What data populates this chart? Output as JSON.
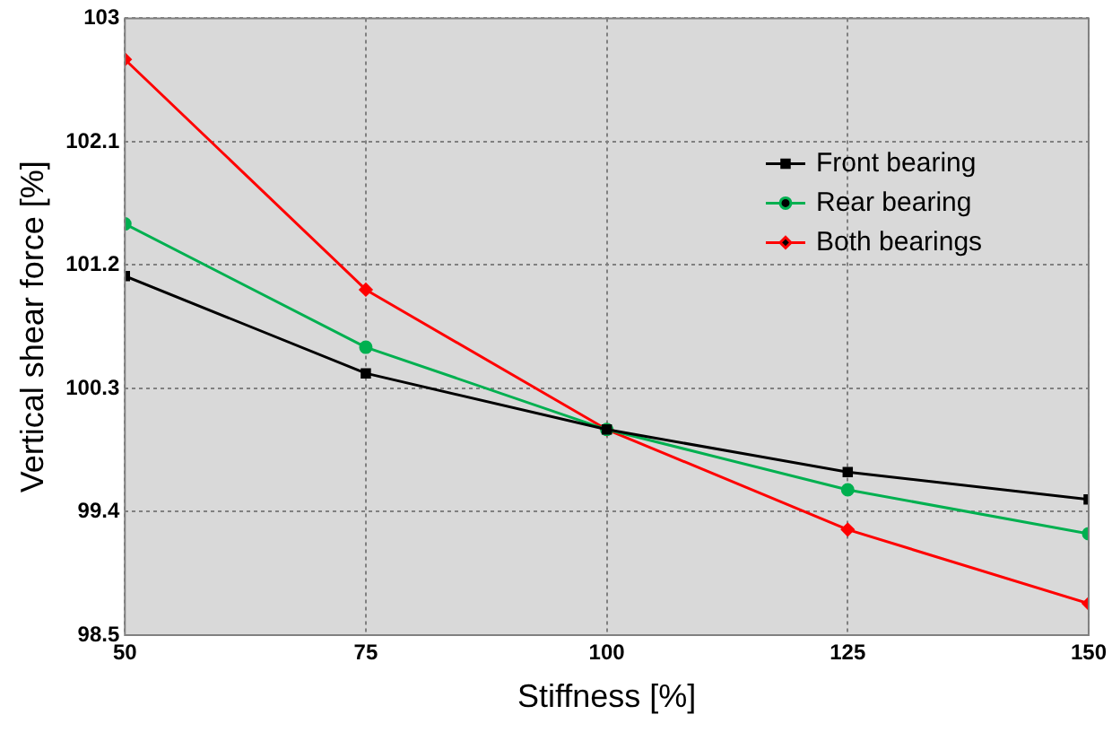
{
  "chart_data": {
    "type": "line",
    "xlabel": "Stiffness [%]",
    "ylabel": "Vertical shear force [%]",
    "x": [
      50,
      75,
      100,
      125,
      150
    ],
    "xlim": [
      50,
      150
    ],
    "xticks": [
      50,
      75,
      100,
      125,
      150
    ],
    "ylim": [
      98.5,
      103
    ],
    "yticks": [
      98.5,
      99.4,
      100.3,
      101.2,
      102.1,
      103
    ],
    "grid": true,
    "legend": "top right",
    "line_style": "solid",
    "series": [
      {
        "name": "Front bearing",
        "color": "#000000",
        "marker": "square",
        "values": [
          101.12,
          100.41,
          100,
          99.69,
          99.49
        ]
      },
      {
        "name": "Rear bearing",
        "color": "#00b050",
        "marker": "circle",
        "values": [
          101.5,
          100.6,
          100,
          99.56,
          99.24
        ]
      },
      {
        "name": "Both bearings",
        "color": "#ff0000",
        "marker": "diamond",
        "values": [
          102.7,
          101.02,
          100,
          99.27,
          98.73
        ]
      }
    ]
  }
}
